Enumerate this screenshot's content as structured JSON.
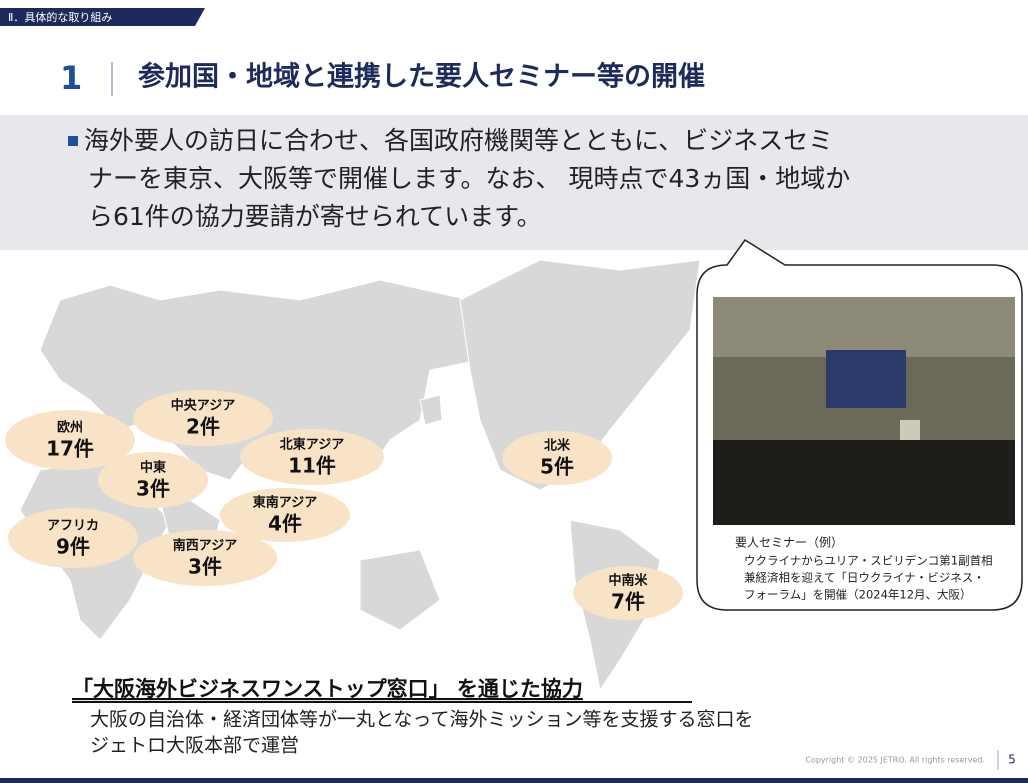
{
  "header": {
    "section": "Ⅱ．具体的な取り組み",
    "number": "1",
    "title": "参加国・地域と連携した要人セミナー等の開催"
  },
  "summary": {
    "lines": [
      "海外要人の訪日に合わせ、各国政府機関等とともに、ビジネスセミ",
      "ナーを東京、大阪等で開催します。なお、 現時点で43ヵ国・地域か",
      "ら61件の協力要請が寄せられています。"
    ]
  },
  "regions": [
    {
      "name": "欧州",
      "count": "17件"
    },
    {
      "name": "中央アジア",
      "count": "2件"
    },
    {
      "name": "北東アジア",
      "count": "11件"
    },
    {
      "name": "中東",
      "count": "3件"
    },
    {
      "name": "東南アジア",
      "count": "4件"
    },
    {
      "name": "アフリカ",
      "count": "9件"
    },
    {
      "name": "南西アジア",
      "count": "3件"
    },
    {
      "name": "北米",
      "count": "5件"
    },
    {
      "name": "中南米",
      "count": "7件"
    }
  ],
  "photo_caption": {
    "title": "要人セミナー（例）",
    "lines": [
      "ウクライナからユリア・スビリデンコ第1副首相",
      "兼経済相を迎えて「日ウクライナ・ビジネス・",
      "フォーラム」を開催（2024年12月、大阪）"
    ]
  },
  "cooperation": {
    "heading": "「大阪海外ビジネスワンストップ窓口」 を通じた協力",
    "lines": [
      "大阪の自治体・経済団体等が一丸となって海外ミッション等を支援する窓口を",
      "ジェトロ大阪本部で運営"
    ]
  },
  "footer": {
    "copyright": "Copyright © 2025 JETRO. All rights reserved.",
    "page": "5"
  }
}
